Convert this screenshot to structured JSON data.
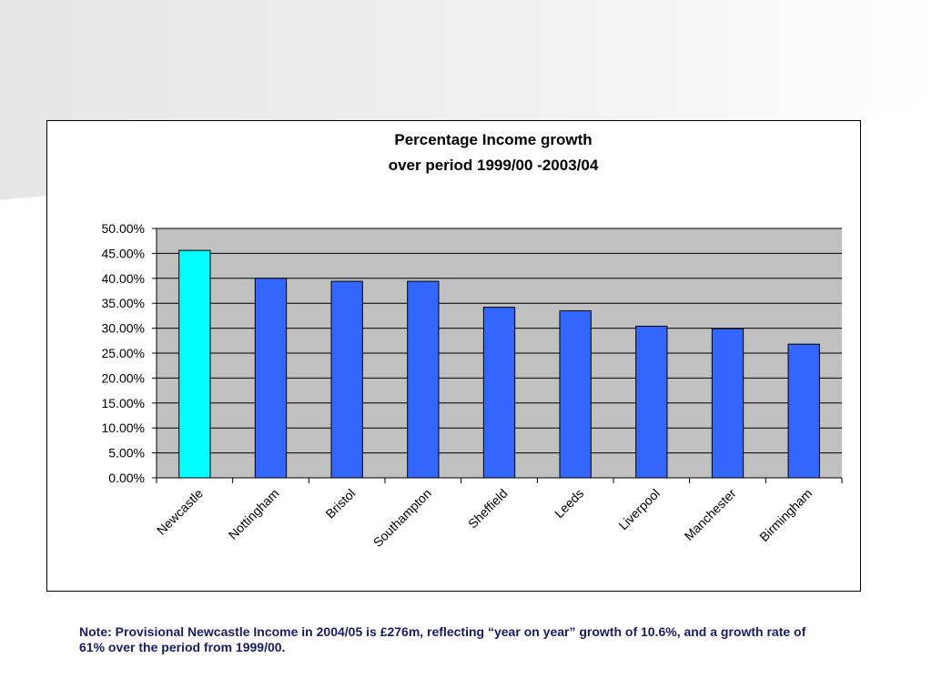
{
  "colors": {
    "plot_background": "#c0c0c0",
    "highlight_bar": "#00ffff",
    "bar": "#3366ff",
    "note_text": "#1a1a66"
  },
  "chart_data": {
    "type": "bar",
    "title": "Percentage Income growth over period  1999/00 -2003/04",
    "title_lines": [
      "Percentage Income growth",
      "over period  1999/00 -2003/04"
    ],
    "xlabel": "",
    "ylabel": "",
    "categories": [
      "Newcastle",
      "Nottingham",
      "Bristol",
      "Southampton",
      "Sheffield",
      "Leeds",
      "Liverpool",
      "Manchester",
      "Birmingham"
    ],
    "values": [
      45.6,
      40.0,
      39.4,
      39.4,
      34.2,
      33.5,
      30.4,
      29.9,
      26.8
    ],
    "highlight_category": "Newcastle",
    "ylim": [
      0,
      50
    ],
    "yticks": [
      0,
      5,
      10,
      15,
      20,
      25,
      30,
      35,
      40,
      45,
      50
    ],
    "ytick_labels": [
      "0.00%",
      "5.00%",
      "10.00%",
      "15.00%",
      "20.00%",
      "25.00%",
      "30.00%",
      "35.00%",
      "40.00%",
      "45.00%",
      "50.00%"
    ],
    "grid": true,
    "legend": false
  },
  "note": {
    "text": "Note: Provisional Newcastle Income in 2004/05 is £276m, reflecting “year on year” growth of 10.6%, and a growth rate of  61% over the period from 1999/00."
  }
}
